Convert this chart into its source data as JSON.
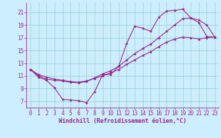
{
  "xlabel": "Windchill (Refroidissement éolien,°C)",
  "x_values": [
    0,
    1,
    2,
    3,
    4,
    5,
    6,
    7,
    8,
    9,
    10,
    11,
    12,
    13,
    14,
    15,
    16,
    17,
    18,
    19,
    20,
    21,
    22,
    23
  ],
  "line1_y": [
    12.0,
    10.8,
    10.3,
    9.1,
    7.3,
    7.2,
    7.1,
    6.8,
    8.5,
    11.2,
    11.2,
    12.5,
    16.1,
    18.8,
    18.5,
    18.0,
    20.2,
    21.2,
    21.3,
    21.5,
    20.1,
    19.4,
    17.2,
    17.1
  ],
  "line2_y": [
    12.0,
    11.2,
    10.8,
    10.5,
    10.3,
    10.1,
    10.0,
    10.2,
    10.6,
    11.0,
    11.5,
    12.0,
    12.8,
    13.5,
    14.2,
    14.8,
    15.6,
    16.3,
    16.8,
    17.1,
    17.0,
    16.8,
    17.0,
    17.1
  ],
  "line3_y": [
    12.0,
    11.0,
    10.5,
    10.3,
    10.2,
    10.0,
    9.9,
    10.1,
    10.7,
    11.3,
    11.8,
    12.5,
    13.5,
    14.5,
    15.3,
    16.0,
    17.0,
    18.0,
    19.0,
    20.0,
    20.1,
    19.8,
    19.0,
    17.1
  ],
  "line_color": "#992288",
  "bg_color": "#cceeff",
  "grid_color": "#99cccc",
  "ylim": [
    6.0,
    22.5
  ],
  "xlim": [
    -0.5,
    23.5
  ],
  "yticks": [
    7,
    9,
    11,
    13,
    15,
    17,
    19,
    21
  ],
  "xticks": [
    0,
    1,
    2,
    3,
    4,
    5,
    6,
    7,
    8,
    9,
    10,
    11,
    12,
    13,
    14,
    15,
    16,
    17,
    18,
    19,
    20,
    21,
    22,
    23
  ],
  "tick_fontsize": 5.5,
  "label_fontsize": 6.0
}
